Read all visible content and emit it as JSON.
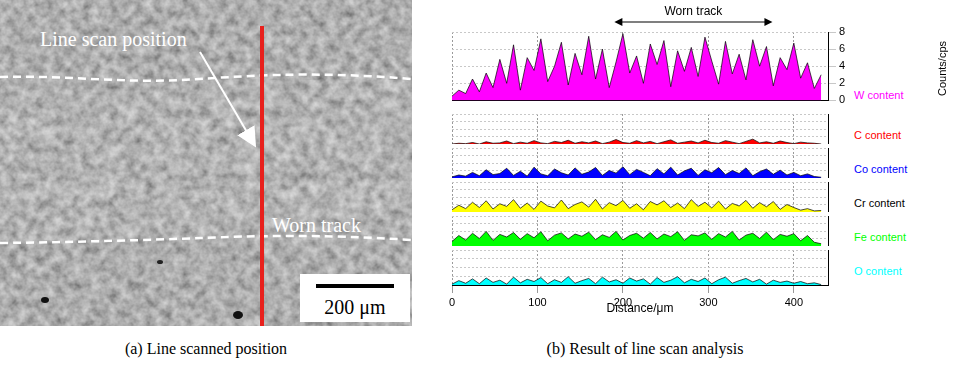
{
  "image_panel": {
    "caption": "(a) Line scanned position",
    "labels": {
      "line": "Line scan position",
      "track": "Worn track",
      "scale_bar": "200 μm"
    }
  },
  "chart_data": {
    "type": "line",
    "caption": "(b) Result of line scan analysis",
    "x_label": "Distance/μm",
    "y_label": "Counts/cps",
    "annotations": [
      {
        "text": "Worn track",
        "x": [
          190,
          375
        ]
      }
    ],
    "x": [
      0,
      8,
      16,
      24,
      32,
      40,
      48,
      56,
      64,
      72,
      80,
      88,
      96,
      104,
      112,
      120,
      128,
      136,
      144,
      152,
      160,
      168,
      176,
      184,
      192,
      200,
      208,
      216,
      224,
      232,
      240,
      248,
      256,
      264,
      272,
      280,
      288,
      296,
      304,
      312,
      320,
      328,
      336,
      344,
      352,
      360,
      368,
      376,
      384,
      392,
      400,
      408,
      416,
      424,
      432
    ],
    "series": [
      {
        "name": "W content",
        "color": "#ff00ff",
        "values": [
          0.5,
          1.2,
          0.8,
          2.5,
          1.0,
          3.2,
          1.5,
          4.8,
          2.0,
          6.5,
          1.2,
          5.0,
          3.5,
          7.2,
          2.2,
          4.0,
          6.8,
          1.8,
          5.5,
          3.0,
          7.5,
          2.5,
          6.0,
          1.5,
          4.5,
          7.8,
          3.2,
          5.2,
          2.0,
          6.6,
          4.2,
          7.0,
          1.6,
          5.8,
          3.4,
          6.2,
          2.8,
          7.4,
          4.6,
          1.9,
          6.9,
          3.1,
          5.4,
          2.4,
          7.1,
          4.0,
          6.3,
          1.7,
          5.0,
          3.6,
          6.7,
          2.6,
          4.4,
          1.4,
          3.0
        ]
      },
      {
        "name": "C content",
        "color": "#ff0000",
        "values": [
          0,
          0.2,
          0.1,
          0.4,
          0,
          0.6,
          0.2,
          0.3,
          0.8,
          0.1,
          0.5,
          0.2,
          0.9,
          0.3,
          0.1,
          0.7,
          0.4,
          1.0,
          0.2,
          0.6,
          0.3,
          0.8,
          0.1,
          0.5,
          1.2,
          0.4,
          0.2,
          0.9,
          0.3,
          0.7,
          0.1,
          0.6,
          1.1,
          0.2,
          0.5,
          0.8,
          0.3,
          1.0,
          0.4,
          0.2,
          0.9,
          0.5,
          0.1,
          0.7,
          1.3,
          0.3,
          0.6,
          0.2,
          0.8,
          0.4,
          0.1,
          0.5,
          0.3,
          0.2,
          0
        ]
      },
      {
        "name": "Co content",
        "color": "#0000ff",
        "values": [
          0.3,
          0.8,
          0.5,
          1.5,
          0.6,
          2.2,
          0.9,
          1.2,
          2.6,
          0.7,
          1.8,
          0.5,
          2.9,
          1.1,
          0.6,
          2.4,
          1.4,
          0.8,
          2.7,
          1.0,
          1.6,
          2.8,
          0.7,
          2.0,
          1.3,
          3.0,
          0.9,
          2.3,
          1.5,
          0.6,
          2.5,
          1.1,
          2.9,
          0.8,
          1.9,
          2.6,
          0.7,
          2.2,
          1.4,
          2.8,
          0.9,
          2.0,
          1.2,
          2.7,
          0.6,
          1.7,
          2.4,
          1.0,
          2.1,
          0.8,
          1.5,
          0.6,
          1.1,
          0.4,
          0.2
        ]
      },
      {
        "name": "Cr content",
        "color": "#ffff00",
        "values": [
          0.6,
          1.8,
          0.9,
          2.6,
          1.2,
          3.0,
          0.8,
          2.2,
          1.5,
          3.3,
          1.0,
          2.4,
          0.7,
          2.9,
          1.6,
          1.1,
          3.2,
          0.9,
          2.0,
          2.7,
          1.3,
          3.4,
          0.8,
          2.5,
          1.7,
          3.1,
          1.0,
          2.2,
          0.6,
          2.8,
          1.9,
          3.0,
          1.2,
          2.4,
          0.9,
          3.3,
          1.5,
          2.6,
          1.1,
          2.9,
          0.8,
          2.3,
          1.6,
          3.1,
          1.0,
          2.5,
          1.4,
          2.8,
          0.7,
          2.0,
          1.2,
          0.5,
          0.9,
          0.3,
          0.4
        ]
      },
      {
        "name": "Fe content",
        "color": "#00ff00",
        "values": [
          1.2,
          2.8,
          1.6,
          3.4,
          2.0,
          3.9,
          1.5,
          3.1,
          2.4,
          3.6,
          1.8,
          3.3,
          2.2,
          3.8,
          1.4,
          2.9,
          3.5,
          1.9,
          3.2,
          2.6,
          3.7,
          1.7,
          3.0,
          2.3,
          3.9,
          1.6,
          2.8,
          3.4,
          2.1,
          3.6,
          1.9,
          3.2,
          2.5,
          3.8,
          1.5,
          3.0,
          2.7,
          3.5,
          1.8,
          3.3,
          2.4,
          3.9,
          1.6,
          2.9,
          3.4,
          2.0,
          3.7,
          1.7,
          3.1,
          2.6,
          3.3,
          1.4,
          2.8,
          1.0,
          0.6
        ]
      },
      {
        "name": "O content",
        "color": "#00ffff",
        "values": [
          0.2,
          1.0,
          0.4,
          1.4,
          0.3,
          1.6,
          0.6,
          1.1,
          0.2,
          1.8,
          0.5,
          1.3,
          0.8,
          1.7,
          0.3,
          1.2,
          0.6,
          1.9,
          0.4,
          1.0,
          1.5,
          0.3,
          1.8,
          0.7,
          1.2,
          0.4,
          1.6,
          0.9,
          1.4,
          0.2,
          1.7,
          0.6,
          1.1,
          1.9,
          0.5,
          1.3,
          0.8,
          1.6,
          0.3,
          1.2,
          1.8,
          0.4,
          1.0,
          1.5,
          0.7,
          1.3,
          0.2,
          1.1,
          0.6,
          0.9,
          0.4,
          0.8,
          0.3,
          0.5,
          0.1
        ]
      }
    ],
    "xlim": [
      0,
      440
    ],
    "xticks": [
      0,
      100,
      200,
      300,
      400
    ],
    "ylim": [
      0,
      8
    ],
    "yticks": [
      0,
      2,
      4,
      6,
      8
    ],
    "grid": true,
    "legend": "right"
  }
}
